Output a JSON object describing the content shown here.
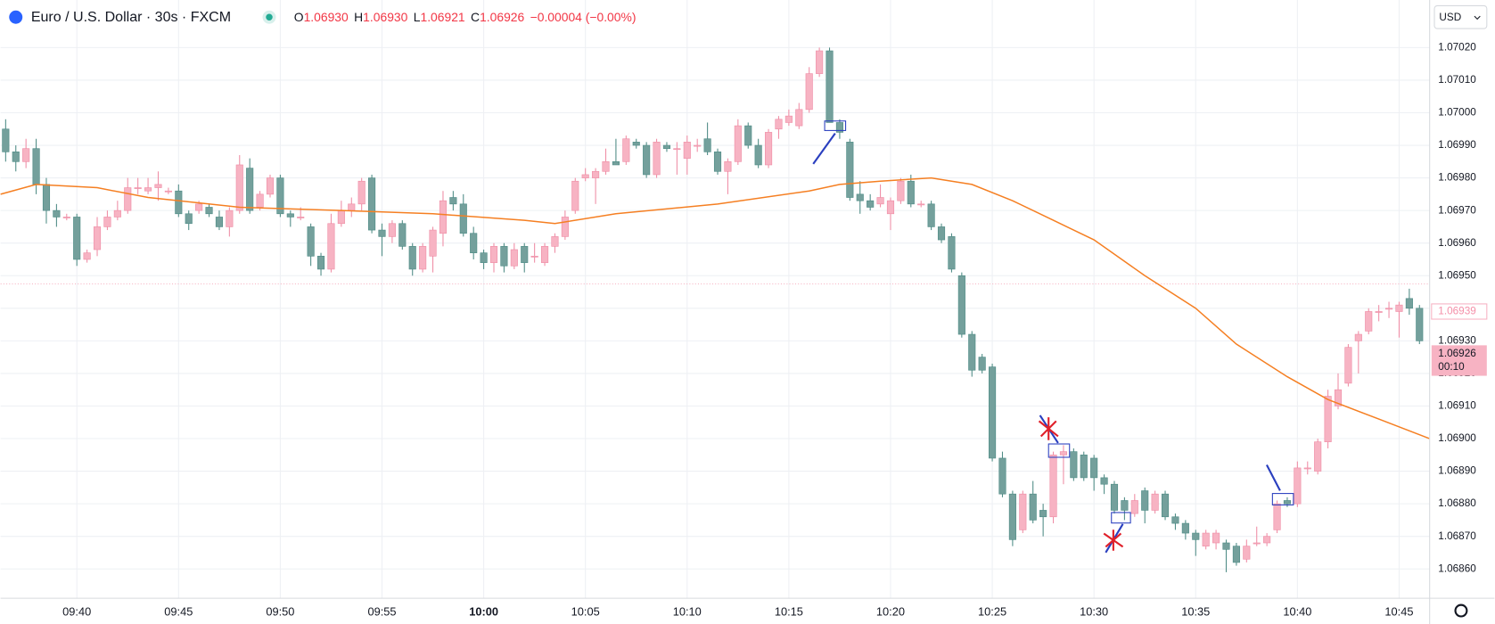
{
  "chart_data": {
    "type": "candlestick",
    "title": "Euro / U.S. Dollar · 30s · FXCM",
    "ohlc_header": [
      {
        "label": "O",
        "value": "1.06930"
      },
      {
        "label": "H",
        "value": "1.06930"
      },
      {
        "label": "L",
        "value": "1.06921"
      },
      {
        "label": "C",
        "value": "1.06926"
      }
    ],
    "change": "−0.00004 (−0.00%)",
    "currency": "USD",
    "countdown": "00:10",
    "last_price": {
      "value": 1.06926,
      "label": "1.06926"
    },
    "mark_price": {
      "value": 1.06939,
      "label": "1.06939"
    },
    "up_color": "#f7b3c3",
    "down_color": "#74a09c",
    "open": [
      1.06995,
      1.06988,
      1.06985,
      1.06989,
      1.06978,
      1.0697,
      1.06968,
      1.06968,
      1.06955,
      1.06958,
      1.06965,
      1.06968,
      1.0697,
      1.06977,
      1.06976,
      1.06977,
      1.06976,
      1.06976,
      1.06969,
      1.0697,
      1.06971,
      1.06968,
      1.06965,
      1.0697,
      1.06983,
      1.06971,
      1.06975,
      1.0698,
      1.06969,
      1.06968,
      1.06965,
      1.06956,
      1.06952,
      1.06966,
      1.0697,
      1.06972,
      1.0698,
      1.06964,
      1.06962,
      1.06966,
      1.06959,
      1.06952,
      1.06956,
      1.06963,
      1.06974,
      1.06972,
      1.06963,
      1.06957,
      1.06954,
      1.06959,
      1.06953,
      1.06959,
      1.06956,
      1.06954,
      1.06959,
      1.06962,
      1.0697,
      1.0698,
      1.0698,
      1.06982,
      1.06985,
      1.06985,
      1.06991,
      1.0699,
      1.06981,
      1.0699,
      1.06989,
      1.06986,
      1.0699,
      1.06992,
      1.06988,
      1.06982,
      1.06985,
      1.06996,
      1.0699,
      1.06984,
      1.06995,
      1.06997,
      1.06996,
      1.07001,
      1.07012,
      1.07019,
      1.06997,
      1.06991,
      1.06975,
      1.06973,
      1.06972,
      1.06969,
      1.06973,
      1.06979,
      1.06972,
      1.06972,
      1.06965,
      1.06962,
      1.0695,
      1.06932,
      1.06925,
      1.06922,
      1.06894,
      1.06883,
      1.06872,
      1.06883,
      1.06878,
      1.06876,
      1.06895,
      1.06896,
      1.06895,
      1.06894,
      1.06888,
      1.06886,
      1.06881,
      1.06877,
      1.06884,
      1.06878,
      1.06883,
      1.06876,
      1.06874,
      1.06871,
      1.06867,
      1.06868,
      1.06868,
      1.06867,
      1.06863,
      1.06868,
      1.06868,
      1.06872,
      1.06881,
      1.0688,
      1.06891,
      1.0689,
      1.06899,
      1.0691,
      1.06917,
      1.0693,
      1.06933,
      1.06939,
      1.0694,
      1.06939,
      1.06943,
      1.0694
    ],
    "high": [
      1.06998,
      1.0699,
      1.06992,
      1.06992,
      1.0698,
      1.06972,
      1.06969,
      1.06969,
      1.06958,
      1.06968,
      1.0697,
      1.06973,
      1.0698,
      1.0698,
      1.0698,
      1.06982,
      1.06977,
      1.06978,
      1.0697,
      1.06973,
      1.06972,
      1.0697,
      1.06971,
      1.06987,
      1.06986,
      1.06976,
      1.06981,
      1.06981,
      1.0697,
      1.06971,
      1.06966,
      1.06957,
      1.06969,
      1.06973,
      1.06974,
      1.0698,
      1.06981,
      1.06966,
      1.06967,
      1.06967,
      1.0696,
      1.0696,
      1.06965,
      1.06976,
      1.06976,
      1.06975,
      1.06965,
      1.06958,
      1.0696,
      1.0696,
      1.0696,
      1.0696,
      1.0696,
      1.0696,
      1.06963,
      1.0697,
      1.0698,
      1.06983,
      1.06983,
      1.06989,
      1.06992,
      1.06993,
      1.06992,
      1.06991,
      1.06992,
      1.06991,
      1.06991,
      1.06993,
      1.06992,
      1.06997,
      1.06989,
      1.06986,
      1.06998,
      1.06997,
      1.06992,
      1.06995,
      1.06999,
      1.07001,
      1.07003,
      1.07014,
      1.0702,
      1.0702,
      1.06998,
      1.06992,
      1.06979,
      1.06975,
      1.06978,
      1.06974,
      1.0698,
      1.06981,
      1.06973,
      1.06973,
      1.06966,
      1.06963,
      1.06951,
      1.06933,
      1.06926,
      1.06923,
      1.06896,
      1.06884,
      1.06884,
      1.06887,
      1.0688,
      1.06896,
      1.06898,
      1.06897,
      1.06896,
      1.06895,
      1.06889,
      1.06887,
      1.06882,
      1.06883,
      1.06885,
      1.06884,
      1.06884,
      1.06877,
      1.06875,
      1.06872,
      1.06872,
      1.06872,
      1.06869,
      1.06868,
      1.06869,
      1.06873,
      1.06871,
      1.06881,
      1.06882,
      1.06893,
      1.06893,
      1.069,
      1.06915,
      1.0692,
      1.06929,
      1.06933,
      1.0694,
      1.06941,
      1.06942,
      1.06942,
      1.06946,
      1.06941
    ],
    "low": [
      1.06985,
      1.06982,
      1.06983,
      1.06975,
      1.06966,
      1.06965,
      1.06967,
      1.06953,
      1.06954,
      1.06956,
      1.06964,
      1.06967,
      1.06969,
      1.06975,
      1.06975,
      1.06973,
      1.06975,
      1.06968,
      1.06964,
      1.06969,
      1.06968,
      1.06964,
      1.06962,
      1.06969,
      1.06969,
      1.0697,
      1.06974,
      1.06968,
      1.06965,
      1.06967,
      1.06953,
      1.0695,
      1.06951,
      1.06965,
      1.06968,
      1.0697,
      1.06963,
      1.06956,
      1.0696,
      1.06958,
      1.0695,
      1.06951,
      1.06951,
      1.06959,
      1.0697,
      1.06962,
      1.06955,
      1.06952,
      1.06951,
      1.06951,
      1.06952,
      1.06951,
      1.06954,
      1.06953,
      1.06957,
      1.06961,
      1.06969,
      1.06979,
      1.06972,
      1.06981,
      1.06984,
      1.06984,
      1.06989,
      1.0698,
      1.0698,
      1.06988,
      1.06981,
      1.06981,
      1.06988,
      1.06987,
      1.06981,
      1.06975,
      1.06984,
      1.06989,
      1.06983,
      1.06983,
      1.06992,
      1.06996,
      1.06995,
      1.07,
      1.07011,
      1.06997,
      1.06992,
      1.06973,
      1.06969,
      1.0697,
      1.06971,
      1.06964,
      1.06972,
      1.06971,
      1.06971,
      1.06964,
      1.0696,
      1.06951,
      1.06931,
      1.06919,
      1.0692,
      1.06893,
      1.06882,
      1.06867,
      1.06871,
      1.06874,
      1.0687,
      1.06874,
      1.06886,
      1.06887,
      1.06887,
      1.06884,
      1.06883,
      1.06877,
      1.06875,
      1.06876,
      1.06874,
      1.06877,
      1.06875,
      1.06872,
      1.06869,
      1.06864,
      1.06866,
      1.06866,
      1.06859,
      1.06861,
      1.06862,
      1.06867,
      1.06867,
      1.06871,
      1.06879,
      1.06879,
      1.06889,
      1.06889,
      1.06897,
      1.06909,
      1.06916,
      1.0692,
      1.06932,
      1.06936,
      1.06937,
      1.06931,
      1.06938,
      1.06929
    ],
    "close": [
      1.06988,
      1.06985,
      1.06989,
      1.06978,
      1.0697,
      1.06968,
      1.06968,
      1.06955,
      1.06957,
      1.06965,
      1.06968,
      1.0697,
      1.06977,
      1.06977,
      1.06977,
      1.06978,
      1.06976,
      1.06969,
      1.06966,
      1.06972,
      1.06969,
      1.06965,
      1.0697,
      1.06984,
      1.0697,
      1.06975,
      1.0698,
      1.06969,
      1.06968,
      1.06968,
      1.06956,
      1.06952,
      1.06966,
      1.0697,
      1.06972,
      1.06979,
      1.06964,
      1.06962,
      1.06966,
      1.06959,
      1.06952,
      1.06959,
      1.06964,
      1.06973,
      1.06972,
      1.06963,
      1.06957,
      1.06954,
      1.06959,
      1.06953,
      1.06958,
      1.06954,
      1.06956,
      1.06959,
      1.06962,
      1.06968,
      1.06979,
      1.06981,
      1.06982,
      1.06985,
      1.06984,
      1.06992,
      1.0699,
      1.06981,
      1.06991,
      1.06989,
      1.06989,
      1.06991,
      1.0699,
      1.06988,
      1.06982,
      1.06985,
      1.06996,
      1.0699,
      1.06984,
      1.06994,
      1.06998,
      1.06999,
      1.07001,
      1.07012,
      1.07019,
      1.06997,
      1.06994,
      1.06974,
      1.06973,
      1.06971,
      1.06974,
      1.06973,
      1.06979,
      1.06972,
      1.06972,
      1.06965,
      1.06961,
      1.06952,
      1.06932,
      1.06921,
      1.06921,
      1.06894,
      1.06883,
      1.06869,
      1.06883,
      1.06875,
      1.06876,
      1.06895,
      1.06896,
      1.06888,
      1.06888,
      1.06888,
      1.06886,
      1.06878,
      1.06878,
      1.06881,
      1.06878,
      1.06883,
      1.06876,
      1.06874,
      1.06871,
      1.06869,
      1.06871,
      1.06871,
      1.06866,
      1.06862,
      1.06867,
      1.06868,
      1.0687,
      1.0688,
      1.0688,
      1.06891,
      1.06891,
      1.06899,
      1.06913,
      1.06915,
      1.06928,
      1.06932,
      1.06939,
      1.06939,
      1.0694,
      1.06941,
      1.0694,
      1.0693
    ],
    "ema": {
      "color": "#f57f22",
      "x": [
        -0.5,
        3,
        9,
        14,
        23,
        33,
        42,
        51,
        54,
        60,
        70,
        79,
        82,
        86,
        91,
        95,
        99,
        103,
        107,
        112,
        117,
        121,
        126,
        130,
        135,
        140
      ],
      "values": [
        1.06975,
        1.06978,
        1.06977,
        1.06974,
        1.06971,
        1.0697,
        1.06969,
        1.06967,
        1.06966,
        1.06969,
        1.06972,
        1.06976,
        1.06978,
        1.06979,
        1.0698,
        1.06978,
        1.06973,
        1.06967,
        1.06961,
        1.0695,
        1.0694,
        1.06929,
        1.06919,
        1.06912,
        1.06906,
        1.069
      ]
    },
    "xlim": [
      -0.5,
      140
    ],
    "ylim": [
      1.06851,
      1.070346
    ],
    "xticks": [
      {
        "value": 7,
        "label": "09:40"
      },
      {
        "value": 17,
        "label": "09:45"
      },
      {
        "value": 27,
        "label": "09:50"
      },
      {
        "value": 37,
        "label": "09:55"
      },
      {
        "value": 47,
        "label": "10:00"
      },
      {
        "value": 57,
        "label": "10:05"
      },
      {
        "value": 67,
        "label": "10:10"
      },
      {
        "value": 77,
        "label": "10:15"
      },
      {
        "value": 87,
        "label": "10:20"
      },
      {
        "value": 97,
        "label": "10:25"
      },
      {
        "value": 107,
        "label": "10:30"
      },
      {
        "value": 117,
        "label": "10:35"
      },
      {
        "value": 127,
        "label": "10:40"
      },
      {
        "value": 137,
        "label": "10:45"
      }
    ],
    "yticks": [
      {
        "value": 1.0686,
        "label": "1.06860"
      },
      {
        "value": 1.0687,
        "label": "1.06870"
      },
      {
        "value": 1.0688,
        "label": "1.06880"
      },
      {
        "value": 1.0689,
        "label": "1.06890"
      },
      {
        "value": 1.069,
        "label": "1.06900"
      },
      {
        "value": 1.0691,
        "label": "1.06910"
      },
      {
        "value": 1.0692,
        "label": "1.06920"
      },
      {
        "value": 1.0693,
        "label": "1.06930"
      },
      {
        "value": 1.0694,
        "label": "1.06940"
      },
      {
        "value": 1.0695,
        "label": "1.06950"
      },
      {
        "value": 1.0696,
        "label": "1.06960"
      },
      {
        "value": 1.0697,
        "label": "1.06970"
      },
      {
        "value": 1.0698,
        "label": "1.06980"
      },
      {
        "value": 1.0699,
        "label": "1.06990"
      },
      {
        "value": 1.07,
        "label": "1.07000"
      },
      {
        "value": 1.0701,
        "label": "1.07010"
      },
      {
        "value": 1.0702,
        "label": "1.07020"
      }
    ],
    "grid": true
  }
}
